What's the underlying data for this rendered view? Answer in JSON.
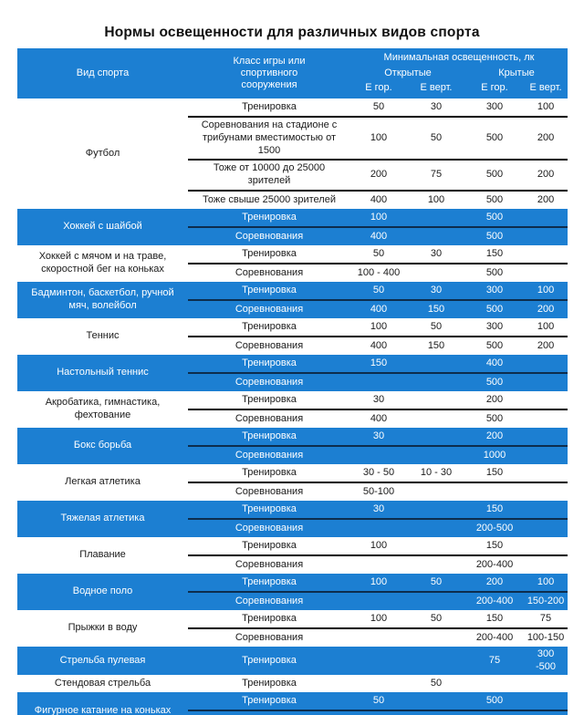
{
  "title": "Нормы освещенности для различных видов спорта",
  "colors": {
    "accent_blue": "#1c7fd2",
    "blue_row_text": "#ffffff",
    "separator_white_group": "#000000",
    "separator_blue_group": "#0d2d4d"
  },
  "table": {
    "headers": {
      "sport": "Вид спорта",
      "class": "Класс игры или спортивного сооружения",
      "illumination": "Минимальная освещенность, лк",
      "open": "Открытые",
      "covered": "Крытые",
      "e_hor": "Е гор.",
      "e_vert": "Е верт."
    },
    "groups": [
      {
        "sport": "Футбол",
        "style": "white",
        "rows": [
          {
            "class": "Тренировка",
            "open_hor": "50",
            "open_vert": "30",
            "cov_hor": "300",
            "cov_vert": "100"
          },
          {
            "class": "Соревнования на стадионе с трибунами вместимостью от 1500",
            "open_hor": "100",
            "open_vert": "50",
            "cov_hor": "500",
            "cov_vert": "200"
          },
          {
            "class": "Тоже от 10000 до 25000 зрителей",
            "open_hor": "200",
            "open_vert": "75",
            "cov_hor": "500",
            "cov_vert": "200"
          },
          {
            "class": "Тоже свыше 25000 зрителей",
            "open_hor": "400",
            "open_vert": "100",
            "cov_hor": "500",
            "cov_vert": "200"
          }
        ]
      },
      {
        "sport": "Хоккей с шайбой",
        "style": "blue",
        "rows": [
          {
            "class": "Тренировка",
            "open_hor": "100",
            "open_vert": "",
            "cov_hor": "500",
            "cov_vert": ""
          },
          {
            "class": "Соревнования",
            "open_hor": "400",
            "open_vert": "",
            "cov_hor": "500",
            "cov_vert": ""
          }
        ]
      },
      {
        "sport": "Хоккей с мячом  и на траве, скоростной бег на коньках",
        "style": "white",
        "rows": [
          {
            "class": "Тренировка",
            "open_hor": "50",
            "open_vert": "30",
            "cov_hor": "150",
            "cov_vert": ""
          },
          {
            "class": "Соревнования",
            "open_hor": "100 - 400",
            "open_vert": "",
            "cov_hor": "500",
            "cov_vert": ""
          }
        ]
      },
      {
        "sport": "Бадминтон, баскетбол, ручной мяч, волейбол",
        "style": "blue",
        "rows": [
          {
            "class": "Тренировка",
            "open_hor": "50",
            "open_vert": "30",
            "cov_hor": "300",
            "cov_vert": "100"
          },
          {
            "class": "Соревнования",
            "open_hor": "400",
            "open_vert": "150",
            "cov_hor": "500",
            "cov_vert": "200"
          }
        ]
      },
      {
        "sport": "Теннис",
        "style": "white",
        "rows": [
          {
            "class": "Тренировка",
            "open_hor": "100",
            "open_vert": "50",
            "cov_hor": "300",
            "cov_vert": "100"
          },
          {
            "class": "Соревнования",
            "open_hor": "400",
            "open_vert": "150",
            "cov_hor": "500",
            "cov_vert": "200"
          }
        ]
      },
      {
        "sport": "Настольный теннис",
        "style": "blue",
        "rows": [
          {
            "class": "Тренировка",
            "open_hor": "150",
            "open_vert": "",
            "cov_hor": "400",
            "cov_vert": ""
          },
          {
            "class": "Соревнования",
            "open_hor": "",
            "open_vert": "",
            "cov_hor": "500",
            "cov_vert": ""
          }
        ]
      },
      {
        "sport": "Акробатика, гимнастика, фехтование",
        "style": "white",
        "rows": [
          {
            "class": "Тренировка",
            "open_hor": "30",
            "open_vert": "",
            "cov_hor": "200",
            "cov_vert": ""
          },
          {
            "class": "Соревнования",
            "open_hor": "400",
            "open_vert": "",
            "cov_hor": "500",
            "cov_vert": ""
          }
        ]
      },
      {
        "sport": "Бокс борьба",
        "style": "blue",
        "rows": [
          {
            "class": "Тренировка",
            "open_hor": "30",
            "open_vert": "",
            "cov_hor": "200",
            "cov_vert": ""
          },
          {
            "class": "Соревнования",
            "open_hor": "",
            "open_vert": "",
            "cov_hor": "1000",
            "cov_vert": ""
          }
        ]
      },
      {
        "sport": "Легкая атлетика",
        "style": "white",
        "rows": [
          {
            "class": "Тренировка",
            "open_hor": "30 - 50",
            "open_vert": "10 - 30",
            "cov_hor": "150",
            "cov_vert": ""
          },
          {
            "class": "Соревнования",
            "open_hor": "50-100",
            "open_vert": "",
            "cov_hor": "",
            "cov_vert": ""
          }
        ]
      },
      {
        "sport": "Тяжелая атлетика",
        "style": "blue",
        "rows": [
          {
            "class": "Тренировка",
            "open_hor": "30",
            "open_vert": "",
            "cov_hor": "150",
            "cov_vert": ""
          },
          {
            "class": "Соревнования",
            "open_hor": "",
            "open_vert": "",
            "cov_hor": "200-500",
            "cov_vert": ""
          }
        ]
      },
      {
        "sport": "Плавание",
        "style": "white",
        "rows": [
          {
            "class": "Тренировка",
            "open_hor": "100",
            "open_vert": "",
            "cov_hor": "150",
            "cov_vert": ""
          },
          {
            "class": "Соревнования",
            "open_hor": "",
            "open_vert": "",
            "cov_hor": "200-400",
            "cov_vert": ""
          }
        ]
      },
      {
        "sport": "Водное поло",
        "style": "blue",
        "rows": [
          {
            "class": "Тренировка",
            "open_hor": "100",
            "open_vert": "50",
            "cov_hor": "200",
            "cov_vert": "100"
          },
          {
            "class": "Соревнования",
            "open_hor": "",
            "open_vert": "",
            "cov_hor": "200-400",
            "cov_vert": "150-200"
          }
        ]
      },
      {
        "sport": "Прыжки в воду",
        "style": "white",
        "rows": [
          {
            "class": "Тренировка",
            "open_hor": "100",
            "open_vert": "50",
            "cov_hor": "150",
            "cov_vert": "75"
          },
          {
            "class": "Соревнования",
            "open_hor": "",
            "open_vert": "",
            "cov_hor": "200-400",
            "cov_vert": "100-150"
          }
        ]
      },
      {
        "sport": "Стрельба пулевая",
        "style": "blue",
        "rows": [
          {
            "class": "Тренировка",
            "open_hor": "",
            "open_vert": "",
            "cov_hor": "75",
            "cov_vert": "300 -500"
          }
        ]
      },
      {
        "sport": "Стендовая стрельба",
        "style": "white",
        "rows": [
          {
            "class": "Тренировка",
            "open_hor": "",
            "open_vert": "50",
            "cov_hor": "",
            "cov_vert": ""
          }
        ]
      },
      {
        "sport": "Фигурное катание на коньках",
        "style": "blue",
        "rows": [
          {
            "class": "Тренировка",
            "open_hor": "50",
            "open_vert": "",
            "cov_hor": "500",
            "cov_vert": ""
          },
          {
            "class": "Соревнования",
            "open_hor": "400",
            "open_vert": "",
            "cov_hor": "500",
            "cov_vert": ""
          }
        ]
      },
      {
        "sport": "Массовое катание на коньках",
        "style": "white",
        "rows": [
          {
            "class": "Тренировка",
            "open_hor": "10",
            "open_vert": "",
            "cov_hor": "",
            "cov_vert": ""
          }
        ]
      }
    ]
  }
}
